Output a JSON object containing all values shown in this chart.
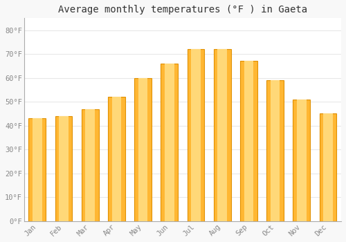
{
  "title": "Average monthly temperatures (°F ) in Gaeta",
  "months": [
    "Jan",
    "Feb",
    "Mar",
    "Apr",
    "May",
    "Jun",
    "Jul",
    "Aug",
    "Sep",
    "Oct",
    "Nov",
    "Dec"
  ],
  "values": [
    43,
    44,
    47,
    52,
    60,
    66,
    72,
    72,
    67,
    59,
    51,
    45
  ],
  "bar_color_center": "#FFD060",
  "bar_color_edge": "#F0A000",
  "ylim": [
    0,
    85
  ],
  "yticks": [
    0,
    10,
    20,
    30,
    40,
    50,
    60,
    70,
    80
  ],
  "ytick_labels": [
    "0°F",
    "10°F",
    "20°F",
    "30°F",
    "40°F",
    "50°F",
    "60°F",
    "70°F",
    "80°F"
  ],
  "background_color": "#f8f8f8",
  "plot_bg_color": "#ffffff",
  "grid_color": "#e8e8e8",
  "title_fontsize": 10,
  "tick_fontsize": 7.5,
  "axis_color": "#aaaaaa",
  "font_family": "monospace"
}
